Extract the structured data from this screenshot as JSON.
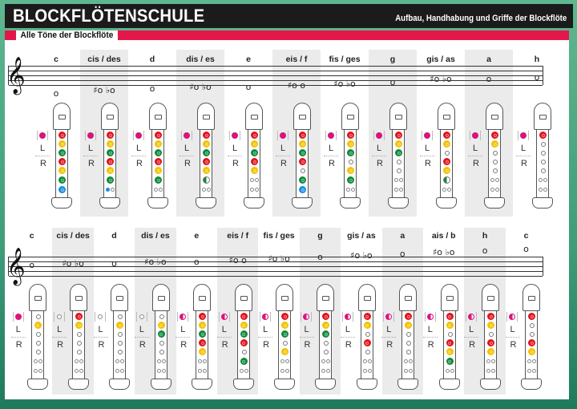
{
  "header": {
    "title": "BLOCKFLÖTENSCHULE",
    "subtitle": "Aufbau, Handhabung und Griffe der Blockflöte"
  },
  "section": {
    "label": "Alle Töne der Blockflöte"
  },
  "labels": {
    "left_hand": "L",
    "right_hand": "R"
  },
  "colors": {
    "brand_black": "#1b1b1b",
    "accent_red": "#e4174a",
    "frame_green": "#3f9d7a",
    "column_shade": "#ebebeb",
    "thumb": "#d9147d",
    "hole_1": "#e0141e",
    "hole_2": "#f2c200",
    "hole_3": "#0f8a3c",
    "hole_4": "#e0141e",
    "hole_5": "#f2c200",
    "hole_6": "#0f8a3c",
    "hole_7": "#1a8fe0"
  },
  "legend": {
    "hole_states": [
      "full",
      "empty",
      "half",
      "double-open",
      "double-left-closed",
      "double-both-closed"
    ]
  },
  "rows": [
    {
      "id": "top",
      "notes": [
        {
          "name": "c",
          "accidentals": [
            "c"
          ],
          "thumb": "full",
          "holes": [
            "full",
            "full",
            "full",
            "full",
            "full",
            "full",
            "full"
          ]
        },
        {
          "name": "cis / des",
          "accidentals": [
            "♯c",
            "♭d"
          ],
          "thumb": "full",
          "holes": [
            "full",
            "full",
            "full",
            "full",
            "full",
            "full",
            "halfblue"
          ]
        },
        {
          "name": "d",
          "accidentals": [
            "d"
          ],
          "thumb": "full",
          "holes": [
            "full",
            "full",
            "full",
            "full",
            "full",
            "full",
            "double"
          ]
        },
        {
          "name": "dis / es",
          "accidentals": [
            "♯d",
            "♭e"
          ],
          "thumb": "full",
          "holes": [
            "full",
            "full",
            "full",
            "full",
            "full",
            "halfgreen",
            "double"
          ]
        },
        {
          "name": "e",
          "accidentals": [
            "e"
          ],
          "thumb": "full",
          "holes": [
            "full",
            "full",
            "full",
            "full",
            "full",
            "double",
            "double"
          ]
        },
        {
          "name": "eis / f",
          "accidentals": [
            "♯e",
            "f"
          ],
          "thumb": "full",
          "holes": [
            "full",
            "full",
            "full",
            "full",
            "empty",
            "full",
            "full"
          ]
        },
        {
          "name": "fis / ges",
          "accidentals": [
            "♯f",
            "♭g"
          ],
          "thumb": "full",
          "holes": [
            "full",
            "full",
            "full",
            "empty",
            "full",
            "full",
            "double"
          ]
        },
        {
          "name": "g",
          "accidentals": [
            "g"
          ],
          "thumb": "full",
          "holes": [
            "full",
            "full",
            "full",
            "empty",
            "empty",
            "double",
            "double"
          ]
        },
        {
          "name": "gis / as",
          "accidentals": [
            "♯g",
            "♭a"
          ],
          "thumb": "full",
          "holes": [
            "full",
            "full",
            "empty",
            "full",
            "full",
            "halfgreen",
            "double"
          ]
        },
        {
          "name": "a",
          "accidentals": [
            "a"
          ],
          "thumb": "full",
          "holes": [
            "full",
            "full",
            "empty",
            "empty",
            "empty",
            "double",
            "double"
          ]
        },
        {
          "name": "h",
          "accidentals": [
            "h"
          ],
          "thumb": "full",
          "holes": [
            "full",
            "empty",
            "empty",
            "empty",
            "empty",
            "double",
            "double"
          ]
        }
      ]
    },
    {
      "id": "bottom",
      "notes": [
        {
          "name": "c",
          "accidentals": [
            "c"
          ],
          "thumb": "full",
          "holes": [
            "empty",
            "full",
            "empty",
            "empty",
            "empty",
            "double",
            "double"
          ]
        },
        {
          "name": "cis / des",
          "accidentals": [
            "♯c",
            "♭d"
          ],
          "thumb": "empty",
          "holes": [
            "full",
            "full",
            "empty",
            "empty",
            "empty",
            "double",
            "double"
          ]
        },
        {
          "name": "d",
          "accidentals": [
            "d"
          ],
          "thumb": "empty",
          "holes": [
            "empty",
            "full",
            "empty",
            "empty",
            "empty",
            "double",
            "double"
          ]
        },
        {
          "name": "dis / es",
          "accidentals": [
            "♯d",
            "♭e"
          ],
          "thumb": "empty",
          "holes": [
            "empty",
            "full",
            "full",
            "empty",
            "empty",
            "double",
            "double"
          ]
        },
        {
          "name": "e",
          "accidentals": [
            "e"
          ],
          "thumb": "half",
          "holes": [
            "full",
            "full",
            "full",
            "full",
            "full",
            "double",
            "double"
          ]
        },
        {
          "name": "eis / f",
          "accidentals": [
            "♯e",
            "f"
          ],
          "thumb": "half",
          "holes": [
            "full",
            "full",
            "full",
            "full",
            "empty",
            "full",
            "double"
          ]
        },
        {
          "name": "fis / ges",
          "accidentals": [
            "♯f",
            "♭g"
          ],
          "thumb": "half",
          "holes": [
            "full",
            "full",
            "full",
            "empty",
            "full",
            "double",
            "double"
          ]
        },
        {
          "name": "g",
          "accidentals": [
            "g"
          ],
          "thumb": "half",
          "holes": [
            "full",
            "full",
            "full",
            "empty",
            "empty",
            "double",
            "double"
          ]
        },
        {
          "name": "gis / as",
          "accidentals": [
            "♯g",
            "♭a"
          ],
          "thumb": "half",
          "holes": [
            "full",
            "full",
            "empty",
            "full",
            "empty",
            "double",
            "double"
          ]
        },
        {
          "name": "a",
          "accidentals": [
            "a"
          ],
          "thumb": "half",
          "holes": [
            "full",
            "full",
            "empty",
            "empty",
            "empty",
            "double",
            "double"
          ]
        },
        {
          "name": "ais / b",
          "accidentals": [
            "♯a",
            "♭h"
          ],
          "thumb": "half",
          "holes": [
            "full",
            "full",
            "empty",
            "full",
            "full",
            "full",
            "double"
          ]
        },
        {
          "name": "h",
          "accidentals": [
            "h"
          ],
          "thumb": "half",
          "holes": [
            "full",
            "full",
            "empty",
            "full",
            "full",
            "double",
            "double"
          ]
        },
        {
          "name": "c",
          "accidentals": [
            "c"
          ],
          "thumb": "half",
          "holes": [
            "full",
            "empty",
            "empty",
            "full",
            "full",
            "double",
            "double"
          ]
        }
      ]
    }
  ]
}
